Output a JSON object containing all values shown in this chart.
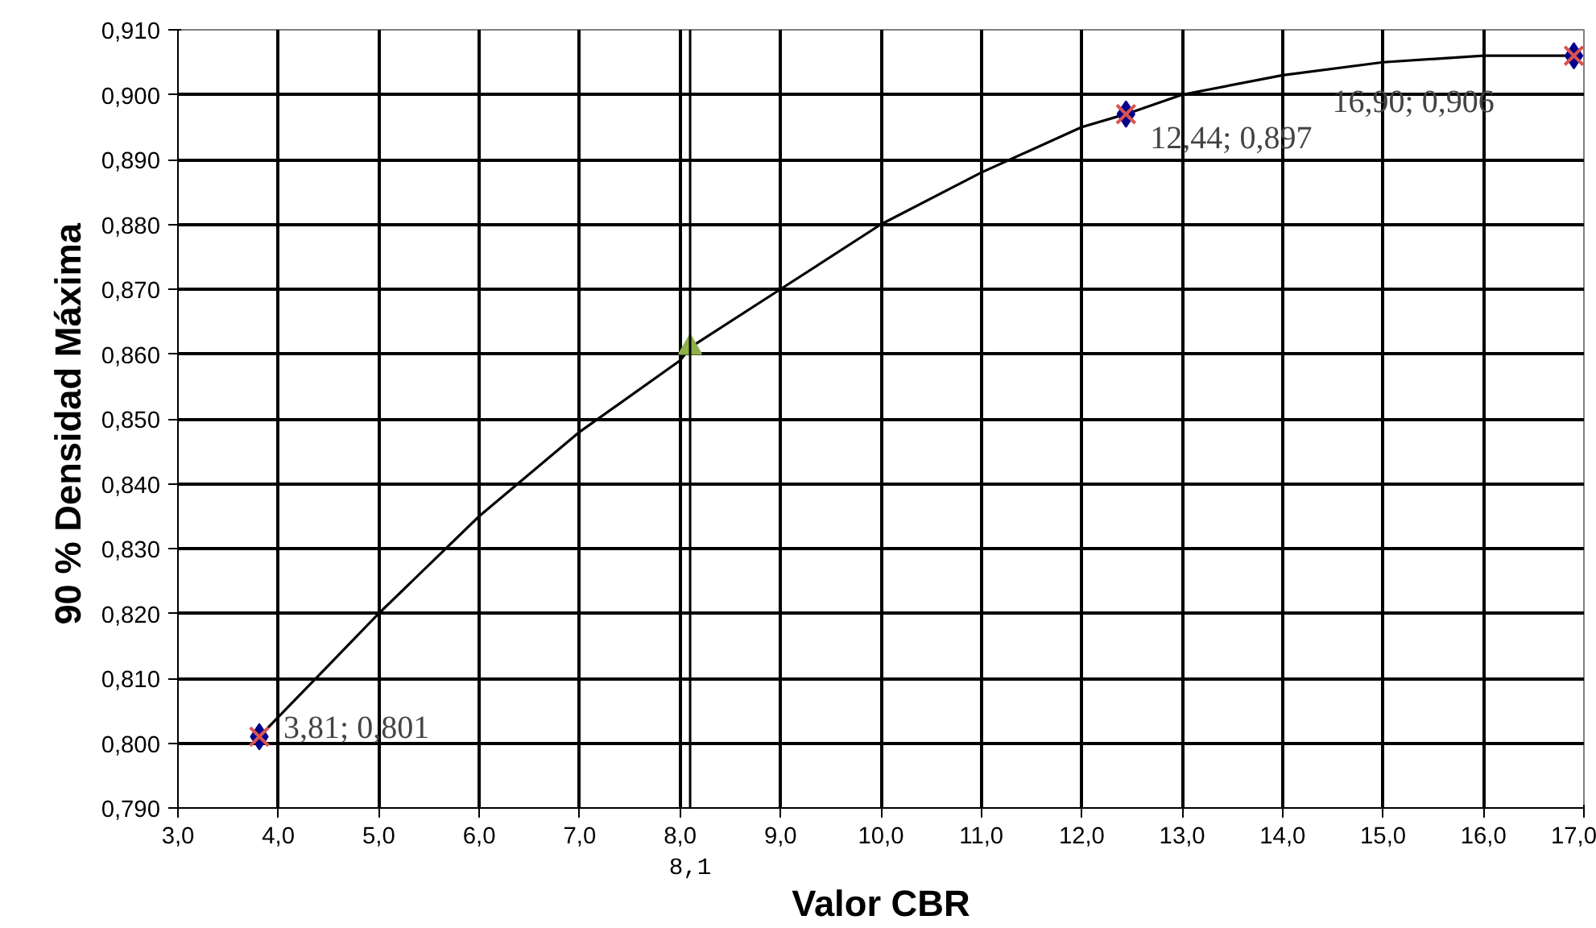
{
  "chart_data": {
    "type": "scatter",
    "xlabel": "Valor CBR",
    "ylabel": "90 %  Densidad Máxima",
    "xlim": [
      3.0,
      17.0
    ],
    "ylim": [
      0.79,
      0.91
    ],
    "xticks": [
      {
        "value": 3,
        "label": "3,0"
      },
      {
        "value": 4,
        "label": "4,0"
      },
      {
        "value": 5,
        "label": "5,0"
      },
      {
        "value": 6,
        "label": "6,0"
      },
      {
        "value": 7,
        "label": "7,0"
      },
      {
        "value": 8,
        "label": "8,0"
      },
      {
        "value": 9,
        "label": "9,0"
      },
      {
        "value": 10,
        "label": "10,0"
      },
      {
        "value": 11,
        "label": "11,0"
      },
      {
        "value": 12,
        "label": "12,0"
      },
      {
        "value": 13,
        "label": "13,0"
      },
      {
        "value": 14,
        "label": "14,0"
      },
      {
        "value": 15,
        "label": "15,0"
      },
      {
        "value": 16,
        "label": "16,0"
      },
      {
        "value": 17,
        "label": "17,0"
      }
    ],
    "yticks": [
      {
        "value": 0.79,
        "label": "0,790"
      },
      {
        "value": 0.8,
        "label": "0,800"
      },
      {
        "value": 0.81,
        "label": "0,810"
      },
      {
        "value": 0.82,
        "label": "0,820"
      },
      {
        "value": 0.83,
        "label": "0,830"
      },
      {
        "value": 0.84,
        "label": "0,840"
      },
      {
        "value": 0.85,
        "label": "0,850"
      },
      {
        "value": 0.86,
        "label": "0,860"
      },
      {
        "value": 0.87,
        "label": "0,870"
      },
      {
        "value": 0.88,
        "label": "0,880"
      },
      {
        "value": 0.89,
        "label": "0,890"
      },
      {
        "value": 0.9,
        "label": "0,900"
      },
      {
        "value": 0.91,
        "label": "0,910"
      }
    ],
    "grid": true,
    "series": [
      {
        "type": "line",
        "color": "#000000",
        "marker": "none",
        "x": [
          3.81,
          4.5,
          5,
          6,
          7,
          8,
          8.1,
          9,
          10,
          11,
          12,
          12.44,
          13,
          14,
          15,
          16,
          16.9
        ],
        "values": [
          0.801,
          0.812,
          0.82,
          0.835,
          0.848,
          0.859,
          0.861,
          0.87,
          0.88,
          0.888,
          0.895,
          0.897,
          0.9,
          0.903,
          0.905,
          0.906,
          0.906
        ]
      },
      {
        "type": "scatter",
        "color": "#00008b",
        "marker": "diamond",
        "x": [
          3.81,
          12.44,
          16.9
        ],
        "values": [
          0.801,
          0.897,
          0.906
        ]
      },
      {
        "type": "scatter",
        "color": "#d9534f",
        "marker": "cross",
        "x": [
          3.81,
          12.44,
          16.9
        ],
        "values": [
          0.801,
          0.897,
          0.906
        ]
      },
      {
        "type": "scatter",
        "color": "#8db04a",
        "marker": "triangle",
        "x": [
          8.1
        ],
        "values": [
          0.861
        ]
      }
    ],
    "ref_lines": [
      {
        "axis": "x",
        "value": 8.1,
        "label": "8,1",
        "color": "#000000"
      }
    ],
    "annotations": [
      {
        "text": "3,81;  0,801",
        "x": 3.81,
        "y": 0.801
      },
      {
        "text": "12,44;  0,897",
        "x": 12.44,
        "y": 0.897
      },
      {
        "text": "16,90;  0,906",
        "x": 16.9,
        "y": 0.906
      }
    ]
  }
}
